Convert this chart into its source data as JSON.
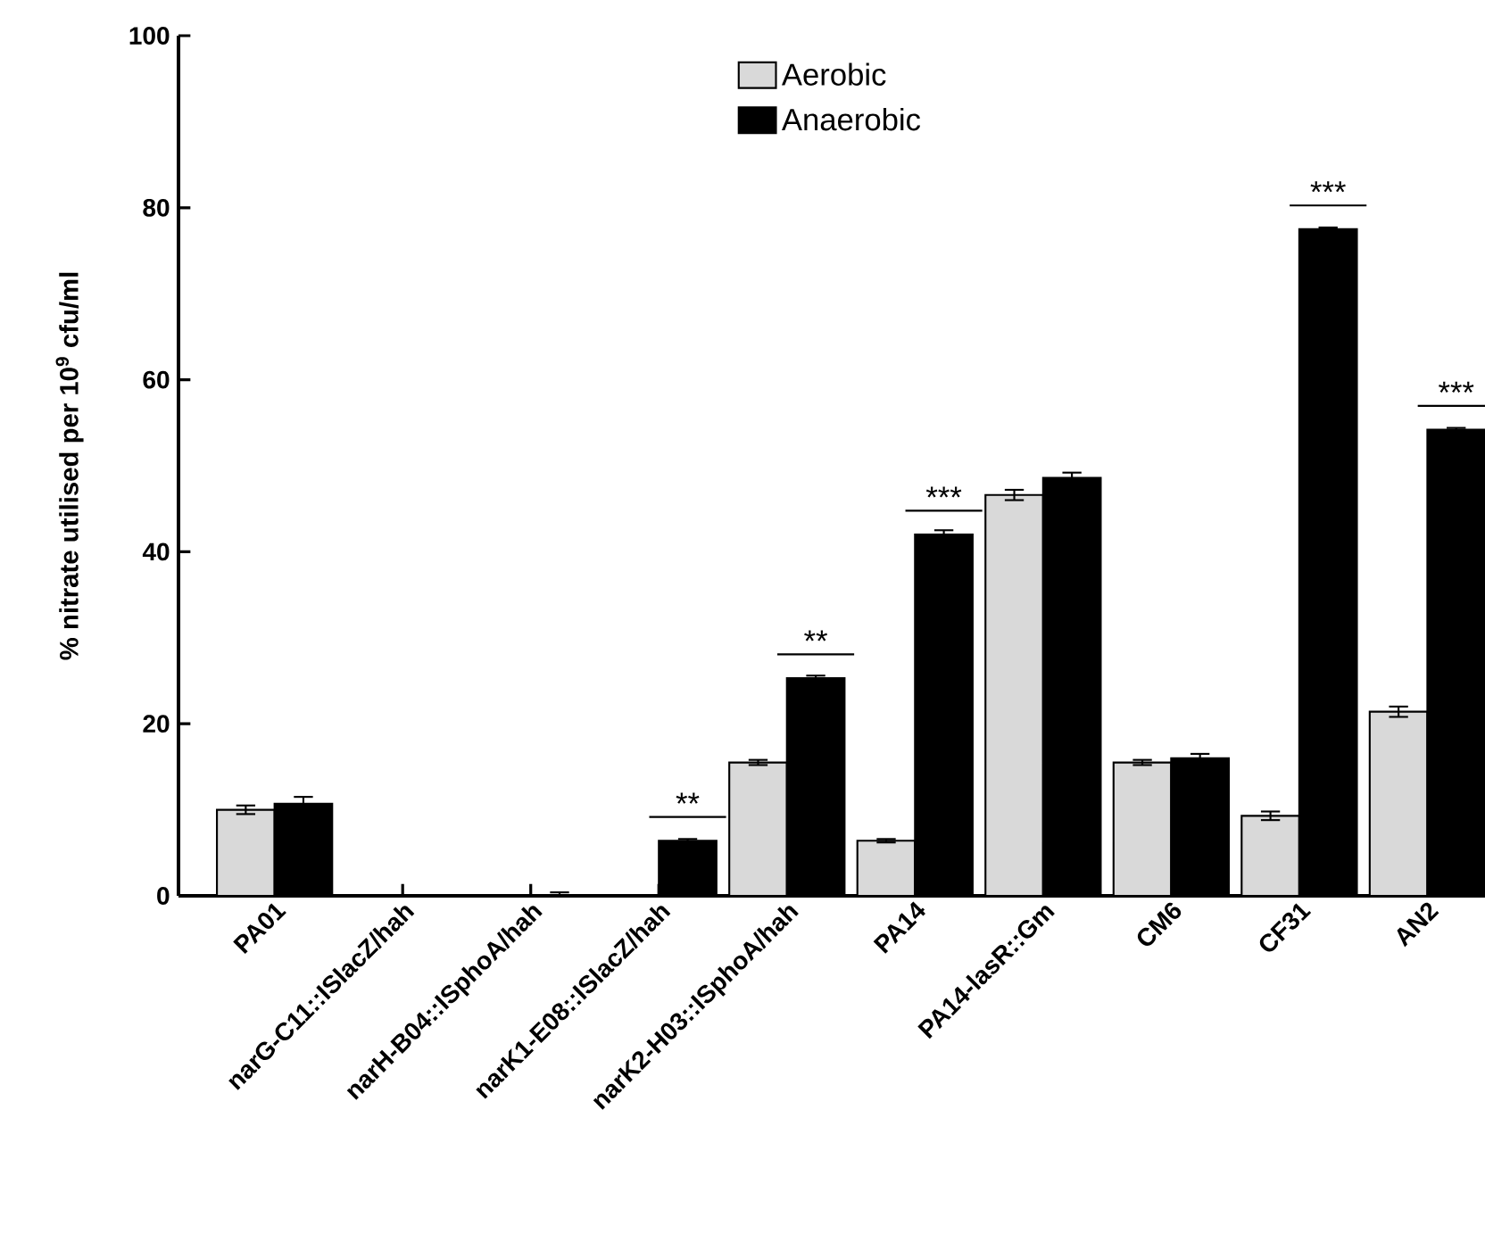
{
  "chart_data": {
    "type": "bar",
    "categories": [
      "PA01",
      "narG-C11::ISlacZ/hah",
      "narH-B04::ISphoA/hah",
      "narK1-E08::ISlacZ/hah",
      "narK2-H03::ISphoA/hah",
      "PA14",
      "PA14-lasR::Gm",
      "CM6",
      "CF31",
      "AN2"
    ],
    "series": [
      {
        "name": "Aerobic",
        "color": "#d9d9d9",
        "values": [
          10.0,
          0,
          0,
          0,
          15.5,
          6.4,
          46.6,
          15.5,
          9.3,
          21.4
        ],
        "errors": [
          0.5,
          0,
          0,
          0,
          0.3,
          0.2,
          0.6,
          0.3,
          0.5,
          0.6
        ]
      },
      {
        "name": "Anaerobic",
        "color": "#000000",
        "values": [
          10.7,
          0,
          0.1,
          6.4,
          25.3,
          42.0,
          48.6,
          16.0,
          77.5,
          54.2
        ],
        "errors": [
          0.8,
          0,
          0.3,
          0.2,
          0.3,
          0.5,
          0.6,
          0.5,
          0.2,
          0.2
        ]
      }
    ],
    "ylabel": "% nitrate utilised per 10$^{9}$ cfu/ml",
    "ylim": [
      0,
      100
    ],
    "yticks": [
      0,
      20,
      40,
      60,
      80,
      100
    ],
    "legend": "top",
    "annotations": [
      {
        "text": "**",
        "x": "narK1-E08::ISlacZ/hah",
        "y": 6.4
      },
      {
        "text": "**",
        "x": "narK2-H03::ISphoA/hah",
        "y": 25.3
      },
      {
        "text": "***",
        "x": "PA14",
        "y": 42.0
      },
      {
        "text": "***",
        "x": "CF31",
        "y": 77.5
      },
      {
        "text": "***",
        "x": "AN2",
        "y": 54.2
      }
    ]
  }
}
